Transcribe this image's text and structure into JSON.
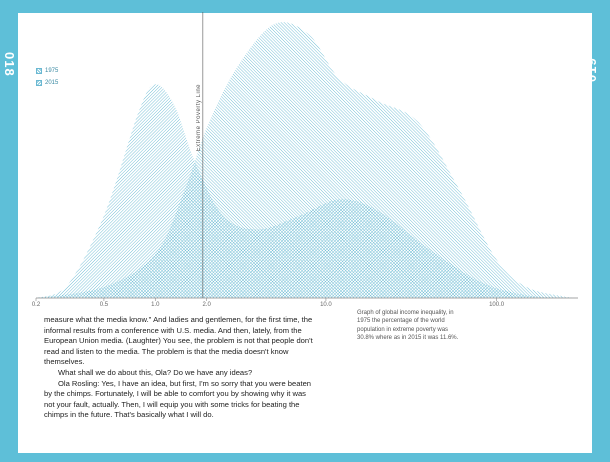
{
  "page_numbers": {
    "left": "018",
    "right": "019"
  },
  "legend": {
    "items": [
      {
        "label": "1975",
        "pattern": "hatch-right"
      },
      {
        "label": "2015",
        "pattern": "hatch-left"
      }
    ]
  },
  "poverty_line_label": "Extreme Poverty Line",
  "body": {
    "paragraphs": [
      "measure what the media know.\" And ladies and gentlemen, for the first time, the informal results from a conference with U.S. media. And then, lately, from the European Union media. (Laughter) You see, the problem is not that people don't read and listen to the media. The problem is that the media doesn't know themselves.",
      "What shall we do about this, Ola? Do we have any ideas?",
      "Ola Rosling: Yes, I have an idea, but first, I'm so sorry that you were beaten by the chimps. Fortunately, I will be able to comfort you by showing why it was not your fault, actually. Then, I will equip you with some tricks for beating the chimps in the future. That's basically what I will do."
    ]
  },
  "caption": "Graph of global income inequality, in 1975 the percentage of the world population in extreme poverty was 30.8% where as in 2015 it was 11.6%.",
  "colors": {
    "accent": "#5ebfd8",
    "hatch": "#6bbbd3",
    "axis": "#888888"
  },
  "chart_data": {
    "type": "area",
    "x_scale": "log",
    "x_ticks": [
      "0.2",
      "0.5",
      "1.0",
      "2.0",
      "10.0",
      "100.0"
    ],
    "xlim": [
      0.2,
      300
    ],
    "poverty_line_x": 1.9,
    "series": [
      {
        "name": "1975",
        "x": [
          0.2,
          0.3,
          0.5,
          0.8,
          1.0,
          1.3,
          1.7,
          2.5,
          4.0,
          7.0,
          12.0,
          20.0,
          40.0,
          80.0,
          150.0,
          300.0
        ],
        "y": [
          0,
          4,
          30,
          68,
          78,
          70,
          50,
          30,
          25,
          30,
          36,
          32,
          18,
          6,
          1,
          0
        ]
      },
      {
        "name": "2015",
        "x": [
          0.2,
          0.5,
          1.0,
          1.5,
          2.0,
          3.0,
          5.0,
          8.0,
          12.0,
          20.0,
          35.0,
          60.0,
          100.0,
          150.0,
          250.0,
          300.0
        ],
        "y": [
          0,
          4,
          16,
          40,
          62,
          84,
          100,
          96,
          80,
          72,
          64,
          40,
          14,
          4,
          0.5,
          0
        ]
      }
    ]
  }
}
